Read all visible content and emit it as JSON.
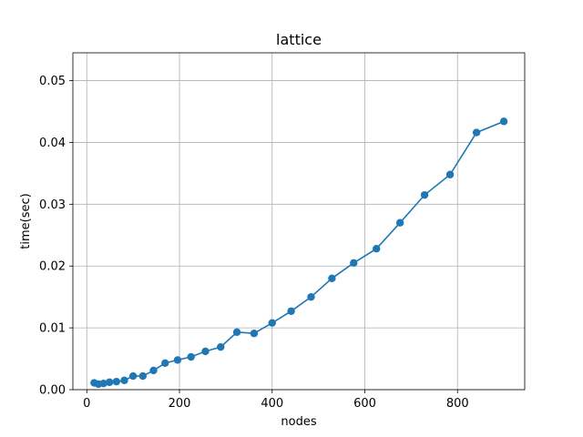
{
  "chart_data": {
    "type": "line",
    "title": "lattice",
    "xlabel": "nodes",
    "ylabel": "time(sec)",
    "xlim": [
      -30,
      945
    ],
    "ylim": [
      0,
      0.0545
    ],
    "xticks": [
      0,
      200,
      400,
      600,
      800
    ],
    "yticks": [
      0.0,
      0.01,
      0.02,
      0.03,
      0.04,
      0.05
    ],
    "xtick_labels": [
      "0",
      "200",
      "400",
      "600",
      "800"
    ],
    "ytick_labels": [
      "0.00",
      "0.01",
      "0.02",
      "0.03",
      "0.04",
      "0.05"
    ],
    "grid": true,
    "color": "#1f77b4",
    "series": [
      {
        "x": [
          16,
          25,
          36,
          49,
          64,
          81,
          100,
          121,
          144,
          169,
          196,
          225,
          256,
          289,
          324,
          361,
          400,
          441,
          484,
          529,
          576,
          625,
          676,
          729,
          784,
          841,
          900
        ],
        "y": [
          0.0011,
          0.0009,
          0.001,
          0.0012,
          0.0013,
          0.0015,
          0.0022,
          0.0022,
          0.0031,
          0.0043,
          0.0048,
          0.0053,
          0.0062,
          0.0069,
          0.0093,
          0.0091,
          0.0108,
          0.0127,
          0.015,
          0.018,
          0.0205,
          0.0228,
          0.027,
          0.0315,
          0.0348,
          0.0416,
          0.0434
        ]
      }
    ]
  }
}
